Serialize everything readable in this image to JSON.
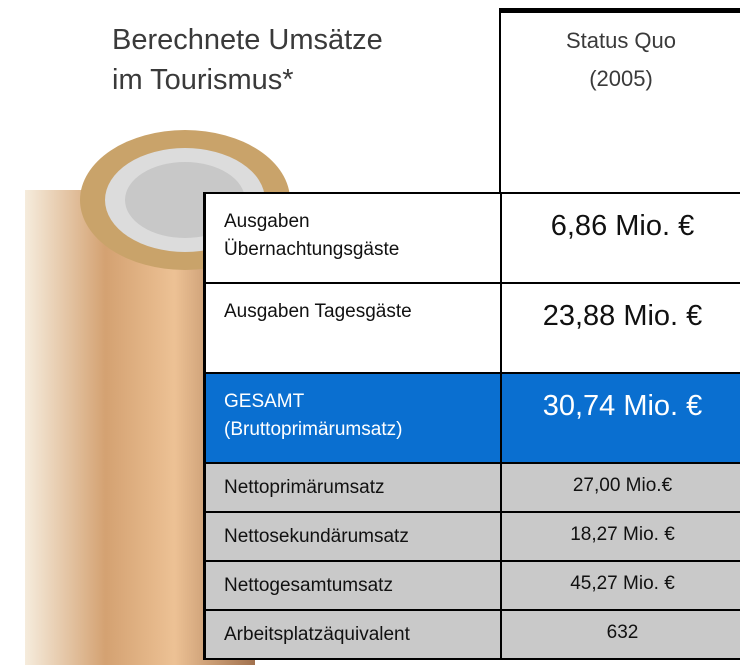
{
  "title": [
    "Berechnete Umsätze",
    "im Tourismus*"
  ],
  "header": [
    "Status Quo",
    "(2005)"
  ],
  "table": {
    "rows": [
      {
        "label": [
          "Ausgaben",
          "Übernachtungsgäste"
        ],
        "value": "6,86 Mio. €"
      },
      {
        "label": [
          "Ausgaben Tagesgäste"
        ],
        "value": "23,88 Mio. €"
      },
      {
        "label": [
          "GESAMT",
          "(Bruttoprimärumsatz)"
        ],
        "value": "30,74 Mio. €"
      },
      {
        "label": [
          "Nettoprimärumsatz"
        ],
        "value": "27,00 Mio.€"
      },
      {
        "label": [
          "Nettosekundärumsatz"
        ],
        "value": "18,27 Mio. €"
      },
      {
        "label": [
          "Nettogesamtumsatz"
        ],
        "value": "45,27 Mio. €"
      },
      {
        "label": [
          "Arbeitsplatzäquivalent"
        ],
        "value": "632"
      }
    ]
  }
}
